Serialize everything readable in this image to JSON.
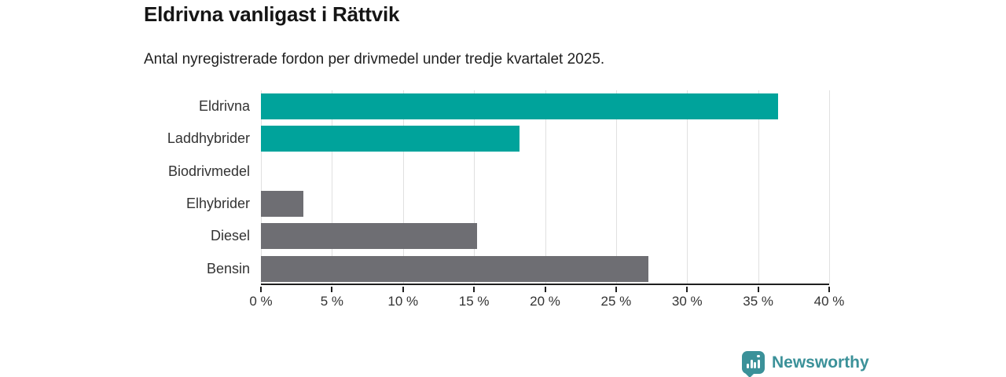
{
  "header": {
    "title": "Eldrivna vanligast i Rättvik",
    "subtitle": "Antal nyregistrerade fordon per drivmedel under tredje kvartalet 2025."
  },
  "chart_data": {
    "type": "bar",
    "orientation": "horizontal",
    "title": "Eldrivna vanligast i Rättvik",
    "subtitle": "Antal nyregistrerade fordon per drivmedel under tredje kvartalet 2025.",
    "categories": [
      "Eldrivna",
      "Laddhybrider",
      "Biodrivmedel",
      "Elhybrider",
      "Diesel",
      "Bensin"
    ],
    "values": [
      36.4,
      18.2,
      0,
      3.0,
      15.2,
      27.3
    ],
    "unit": "%",
    "bar_colors": [
      "#00a39b",
      "#00a39b",
      "#6e6e73",
      "#6e6e73",
      "#6e6e73",
      "#6e6e73"
    ],
    "xlabel": "",
    "ylabel": "",
    "xlim": [
      0,
      40
    ],
    "x_tick_values": [
      0,
      5,
      10,
      15,
      20,
      25,
      30,
      35,
      40
    ],
    "x_tick_labels": [
      "0 %",
      "5 %",
      "10 %",
      "15 %",
      "20 %",
      "25 %",
      "30 %",
      "35 %",
      "40 %"
    ],
    "grid": "vertical",
    "legend": "none"
  },
  "colors": {
    "accent_teal": "#00a39b",
    "bar_gray": "#6e6e73",
    "grid": "#e0e0e0",
    "axis": "#1f1f1f",
    "title_text": "#151515",
    "label_text": "#333333",
    "logo_teal": "#3b9199"
  },
  "footer": {
    "brand": "Newsworthy"
  }
}
